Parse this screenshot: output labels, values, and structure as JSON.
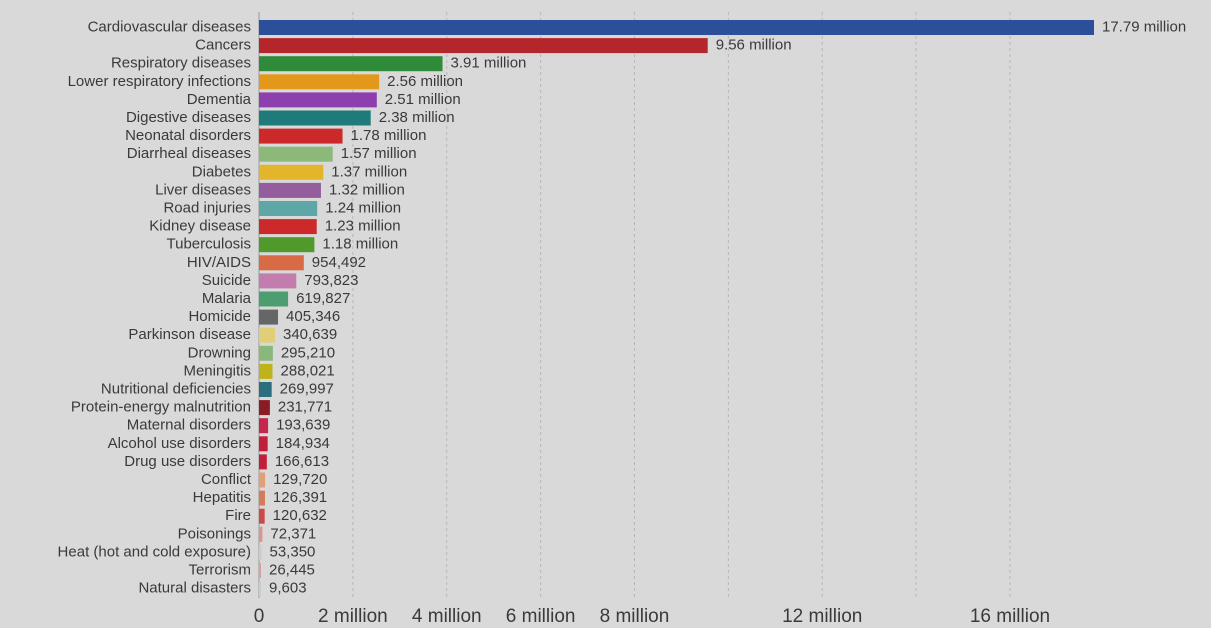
{
  "chart_data": {
    "type": "bar",
    "orientation": "horizontal",
    "categories": [
      "Cardiovascular diseases",
      "Cancers",
      "Respiratory diseases",
      "Lower respiratory infections",
      "Dementia",
      "Digestive diseases",
      "Neonatal disorders",
      "Diarrheal diseases",
      "Diabetes",
      "Liver diseases",
      "Road injuries",
      "Kidney disease",
      "Tuberculosis",
      "HIV/AIDS",
      "Suicide",
      "Malaria",
      "Homicide",
      "Parkinson disease",
      "Drowning",
      "Meningitis",
      "Nutritional deficiencies",
      "Protein-energy malnutrition",
      "Maternal disorders",
      "Alcohol use disorders",
      "Drug use disorders",
      "Conflict",
      "Hepatitis",
      "Fire",
      "Poisonings",
      "Heat (hot and cold exposure)",
      "Terrorism",
      "Natural disasters"
    ],
    "values": [
      17790000,
      9560000,
      3910000,
      2560000,
      2510000,
      2380000,
      1780000,
      1570000,
      1370000,
      1320000,
      1240000,
      1230000,
      1180000,
      954492,
      793823,
      619827,
      405346,
      340639,
      295210,
      288021,
      269997,
      231771,
      193639,
      184934,
      166613,
      129720,
      126391,
      120632,
      72371,
      53350,
      26445,
      9603
    ],
    "value_labels": [
      "17.79 million",
      "9.56 million",
      "3.91 million",
      "2.56 million",
      "2.51 million",
      "2.38 million",
      "1.78 million",
      "1.57 million",
      "1.37 million",
      "1.32 million",
      "1.24 million",
      "1.23 million",
      "1.18 million",
      "954,492",
      "793,823",
      "619,827",
      "405,346",
      "340,639",
      "295,210",
      "288,021",
      "269,997",
      "231,771",
      "193,639",
      "184,934",
      "166,613",
      "129,720",
      "126,391",
      "120,632",
      "72,371",
      "53,350",
      "26,445",
      "9,603"
    ],
    "colors": [
      "#2c4f9a",
      "#b5262b",
      "#2f8a3a",
      "#e3981c",
      "#8e3fae",
      "#1f7b7b",
      "#cc2a2a",
      "#8cb87a",
      "#e3b52a",
      "#945e9c",
      "#5fa7a7",
      "#cc2a2a",
      "#4f9a2a",
      "#d86a45",
      "#c27cae",
      "#4c9e70",
      "#666666",
      "#e0ce79",
      "#88b87c",
      "#bfb21a",
      "#2b6e7e",
      "#8a1c25",
      "#c4264c",
      "#c41f3a",
      "#c41f3a",
      "#e0a07a",
      "#d67a5a",
      "#cc4a4a",
      "#d99494",
      "#cccccc",
      "#d9a0a0",
      "#cccccc"
    ],
    "x_ticks": [
      0,
      2000000,
      4000000,
      6000000,
      8000000,
      12000000,
      16000000
    ],
    "x_tick_labels": [
      "0",
      "2 million",
      "4 million",
      "6 million",
      "8 million",
      "12 million",
      "16 million"
    ],
    "gridlines_at": [
      2000000,
      4000000,
      6000000,
      8000000,
      10000000,
      12000000,
      14000000,
      16000000
    ],
    "xlim": [
      0,
      17790000
    ],
    "grid": true,
    "legend": "none",
    "title": "",
    "xlabel": "",
    "ylabel": ""
  }
}
